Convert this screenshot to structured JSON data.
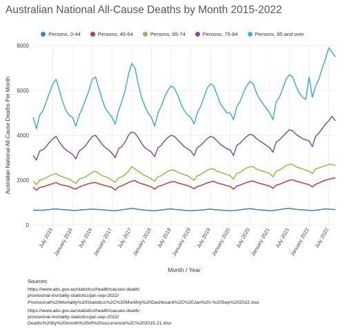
{
  "chart_data": {
    "type": "line",
    "title": "Australian National All-Cause Deaths by Month 2015-2022",
    "xlabel": "Month / Year",
    "ylabel": "Australian National All-Cause Deaths Per Month",
    "ylim": [
      0,
      8000
    ],
    "yticks": [
      0,
      2000,
      4000,
      6000,
      8000
    ],
    "xlim": [
      "2015-01",
      "2022-09"
    ],
    "xtick_dates": [
      "2015-07",
      "2016-01",
      "2016-07",
      "2017-01",
      "2017-07",
      "2018-01",
      "2018-07",
      "2019-01",
      "2019-07",
      "2020-01",
      "2020-07",
      "2021-01",
      "2021-07",
      "2022-01",
      "2022-07"
    ],
    "xtick_labels": [
      "July 2015",
      "January 2016",
      "July 2016",
      "January 2017",
      "July 2017",
      "January 2018",
      "July 2018",
      "January 2019",
      "July 2019",
      "January 2020",
      "July 2020",
      "January 2021",
      "July 2021",
      "January 2022",
      "July 2022"
    ],
    "grid": true,
    "legend_position": "top",
    "start_month": "2015-01",
    "series": [
      {
        "name": "Persons, 0-44",
        "color": "#3f7fbf",
        "values": [
          680,
          650,
          670,
          660,
          680,
          690,
          710,
          720,
          700,
          690,
          680,
          670,
          660,
          650,
          670,
          680,
          690,
          700,
          710,
          700,
          690,
          680,
          670,
          660,
          650,
          640,
          660,
          680,
          700,
          720,
          740,
          730,
          700,
          680,
          670,
          660,
          650,
          640,
          660,
          670,
          690,
          710,
          720,
          700,
          690,
          680,
          660,
          650,
          640,
          650,
          660,
          670,
          680,
          700,
          710,
          690,
          680,
          670,
          660,
          650,
          640,
          650,
          660,
          680,
          700,
          720,
          730,
          710,
          690,
          680,
          670,
          660,
          640,
          650,
          670,
          690,
          710,
          730,
          740,
          720,
          700,
          690,
          680,
          670,
          660,
          650,
          660,
          680,
          700,
          720,
          710,
          700,
          690
        ]
      },
      {
        "name": "Persons, 45-64",
        "color": "#c93a3a",
        "values": [
          1700,
          1550,
          1680,
          1700,
          1750,
          1800,
          1850,
          1900,
          1820,
          1780,
          1750,
          1720,
          1650,
          1600,
          1700,
          1750,
          1800,
          1850,
          1880,
          1900,
          1840,
          1800,
          1760,
          1720,
          1680,
          1560,
          1700,
          1750,
          1820,
          1900,
          1950,
          1980,
          1900,
          1850,
          1800,
          1760,
          1700,
          1600,
          1720,
          1760,
          1820,
          1880,
          1920,
          1940,
          1880,
          1840,
          1800,
          1760,
          1700,
          1620,
          1720,
          1760,
          1820,
          1880,
          1920,
          1950,
          1880,
          1840,
          1800,
          1760,
          1720,
          1600,
          1740,
          1780,
          1840,
          1900,
          1940,
          1960,
          1900,
          1860,
          1820,
          1780,
          1740,
          1640,
          1780,
          1820,
          1880,
          1940,
          2000,
          2020,
          1960,
          1920,
          1880,
          1840,
          1800,
          1700,
          1820,
          1880,
          1940,
          2000,
          2040,
          2080,
          2100
        ]
      },
      {
        "name": "Persons, 65-74",
        "color": "#8fbf3f",
        "values": [
          1950,
          1800,
          2000,
          2050,
          2100,
          2200,
          2250,
          2300,
          2200,
          2150,
          2100,
          2050,
          1950,
          1850,
          2050,
          2100,
          2150,
          2250,
          2350,
          2400,
          2300,
          2200,
          2150,
          2100,
          2000,
          1900,
          2100,
          2150,
          2250,
          2400,
          2600,
          2500,
          2400,
          2300,
          2200,
          2150,
          2050,
          1950,
          2150,
          2200,
          2300,
          2400,
          2450,
          2450,
          2350,
          2300,
          2250,
          2200,
          2100,
          2000,
          2200,
          2250,
          2350,
          2450,
          2500,
          2500,
          2400,
          2350,
          2300,
          2250,
          2200,
          2050,
          2300,
          2350,
          2450,
          2550,
          2600,
          2600,
          2500,
          2450,
          2400,
          2350,
          2300,
          2150,
          2400,
          2450,
          2550,
          2650,
          2700,
          2700,
          2600,
          2550,
          2500,
          2450,
          2400,
          2300,
          2500,
          2550,
          2600,
          2650,
          2700,
          2700,
          2650
        ]
      },
      {
        "name": "Persons, 75-84",
        "color": "#7b4fa0",
        "values": [
          3100,
          2900,
          3300,
          3350,
          3500,
          3700,
          3850,
          3950,
          3700,
          3500,
          3350,
          3250,
          3150,
          2950,
          3300,
          3400,
          3550,
          3750,
          3950,
          4000,
          3800,
          3600,
          3450,
          3350,
          3200,
          3000,
          3400,
          3500,
          3700,
          4000,
          4150,
          4100,
          3900,
          3650,
          3450,
          3350,
          3250,
          3050,
          3450,
          3550,
          3750,
          3900,
          4000,
          3950,
          3800,
          3650,
          3500,
          3400,
          3300,
          3100,
          3450,
          3550,
          3700,
          3850,
          3950,
          3900,
          3750,
          3600,
          3500,
          3400,
          3350,
          3100,
          3550,
          3650,
          3800,
          3950,
          4050,
          4000,
          3850,
          3750,
          3650,
          3550,
          3450,
          3250,
          3700,
          3800,
          3950,
          4100,
          4250,
          4200,
          4050,
          3950,
          3850,
          3800,
          3750,
          3500,
          3950,
          4100,
          4300,
          4500,
          4650,
          4850,
          4650
        ]
      },
      {
        "name": "Persons, 85 and over",
        "color": "#3fb0cc",
        "values": [
          4800,
          4300,
          4900,
          5100,
          5500,
          5900,
          6300,
          6500,
          6000,
          5500,
          5100,
          4900,
          4800,
          4400,
          4900,
          5200,
          5600,
          6000,
          6500,
          6600,
          6100,
          5600,
          5200,
          5000,
          4800,
          4500,
          5100,
          5500,
          6000,
          6700,
          7200,
          7000,
          6300,
          5700,
          5300,
          5000,
          4800,
          4400,
          5000,
          5300,
          5700,
          6000,
          6200,
          6100,
          5800,
          5400,
          5100,
          4900,
          4800,
          4500,
          5000,
          5300,
          5700,
          6100,
          6300,
          6200,
          5800,
          5400,
          5200,
          5000,
          5000,
          4700,
          5300,
          5500,
          5900,
          6200,
          6400,
          6300,
          5900,
          5600,
          5400,
          5200,
          5000,
          4700,
          5500,
          5700,
          6100,
          6500,
          6700,
          6600,
          6200,
          5900,
          5700,
          5600,
          6600,
          5700,
          6200,
          6500,
          7000,
          7400,
          7900,
          7700,
          7500
        ]
      }
    ]
  },
  "sources": {
    "heading": "Sources:",
    "lines": [
      "https://www.abs.gov.au/statistics/health/causes-death/",
      "provisional-mortality-statistics/jan-sep-2022/",
      "Provisional%20Mortality%20Statistics%2C%20Monthly%20Dashboard%2C%20Jan%20-%20Sep%202022.xlsx",
      "https://www.abs.gov.au/statistics/health/causes-death/",
      "provisional-mortality-statistics/jan-sep-2022/",
      "Deaths%20by%20month%20of%20occurrence%2C%202015-21.xlsx"
    ]
  }
}
